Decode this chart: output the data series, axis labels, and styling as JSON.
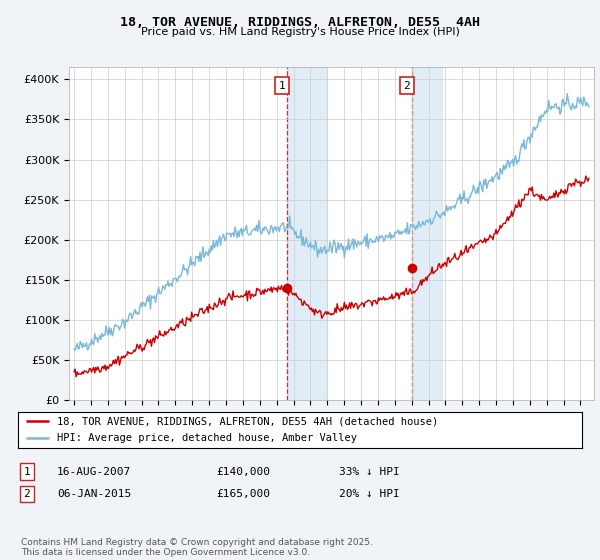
{
  "title": "18, TOR AVENUE, RIDDINGS, ALFRETON, DE55  4AH",
  "subtitle": "Price paid vs. HM Land Registry's House Price Index (HPI)",
  "ylabel_ticks": [
    "£0",
    "£50K",
    "£100K",
    "£150K",
    "£200K",
    "£250K",
    "£300K",
    "£350K",
    "£400K"
  ],
  "ytick_values": [
    0,
    50000,
    100000,
    150000,
    200000,
    250000,
    300000,
    350000,
    400000
  ],
  "ylim": [
    0,
    415000
  ],
  "xlim_start": 1994.7,
  "xlim_end": 2025.8,
  "hpi_color": "#7ab8d9",
  "price_color": "#cc0000",
  "marker1_x": 2007.62,
  "marker1_y": 140000,
  "marker2_x": 2015.02,
  "marker2_y": 165000,
  "legend_line1": "18, TOR AVENUE, RIDDINGS, ALFRETON, DE55 4AH (detached house)",
  "legend_line2": "HPI: Average price, detached house, Amber Valley",
  "table_row1": [
    "1",
    "16-AUG-2007",
    "£140,000",
    "33% ↓ HPI"
  ],
  "table_row2": [
    "2",
    "06-JAN-2015",
    "£165,000",
    "20% ↓ HPI"
  ],
  "footnote": "Contains HM Land Registry data © Crown copyright and database right 2025.\nThis data is licensed under the Open Government Licence v3.0.",
  "bg_color": "#f0f4f8",
  "plot_bg": "#ffffff",
  "highlight1_start": 2007.62,
  "highlight1_end": 2010.0,
  "highlight2_start": 2015.02,
  "highlight2_end": 2016.8
}
